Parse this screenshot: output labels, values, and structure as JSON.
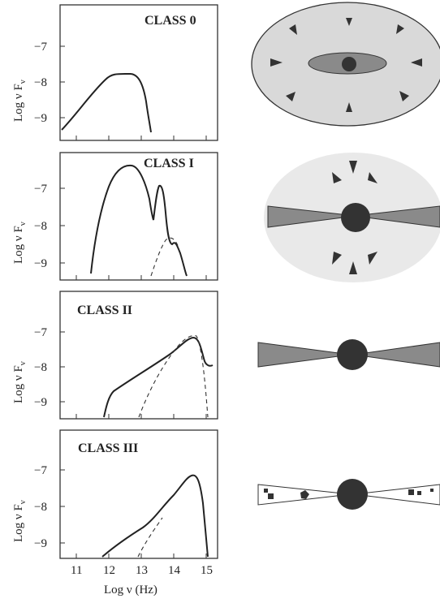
{
  "figure": {
    "panels": [
      {
        "class_label": "CLASS 0",
        "ylabel": "Log ν F",
        "ylabel_sub": "ν",
        "yticks": [
          "−7",
          "−8",
          "−9"
        ]
      },
      {
        "class_label": "CLASS I",
        "ylabel": "Log ν F",
        "ylabel_sub": "ν",
        "yticks": [
          "−7",
          "−8",
          "−9"
        ]
      },
      {
        "class_label": "CLASS II",
        "ylabel": "Log ν F",
        "ylabel_sub": "ν",
        "yticks": [
          "−7",
          "−8",
          "−9"
        ]
      },
      {
        "class_label": "CLASS III",
        "ylabel": "Log ν F",
        "ylabel_sub": "ν",
        "yticks": [
          "−7",
          "−8",
          "−9"
        ]
      }
    ],
    "xticks": [
      "11",
      "12",
      "13",
      "14",
      "15"
    ],
    "xlabel": "Log ν (Hz)"
  },
  "colors": {
    "envelope_fill": "#d9d9d9",
    "disk_fill": "#8a8a8a",
    "star_fill": "#333333",
    "line": "#222222"
  }
}
